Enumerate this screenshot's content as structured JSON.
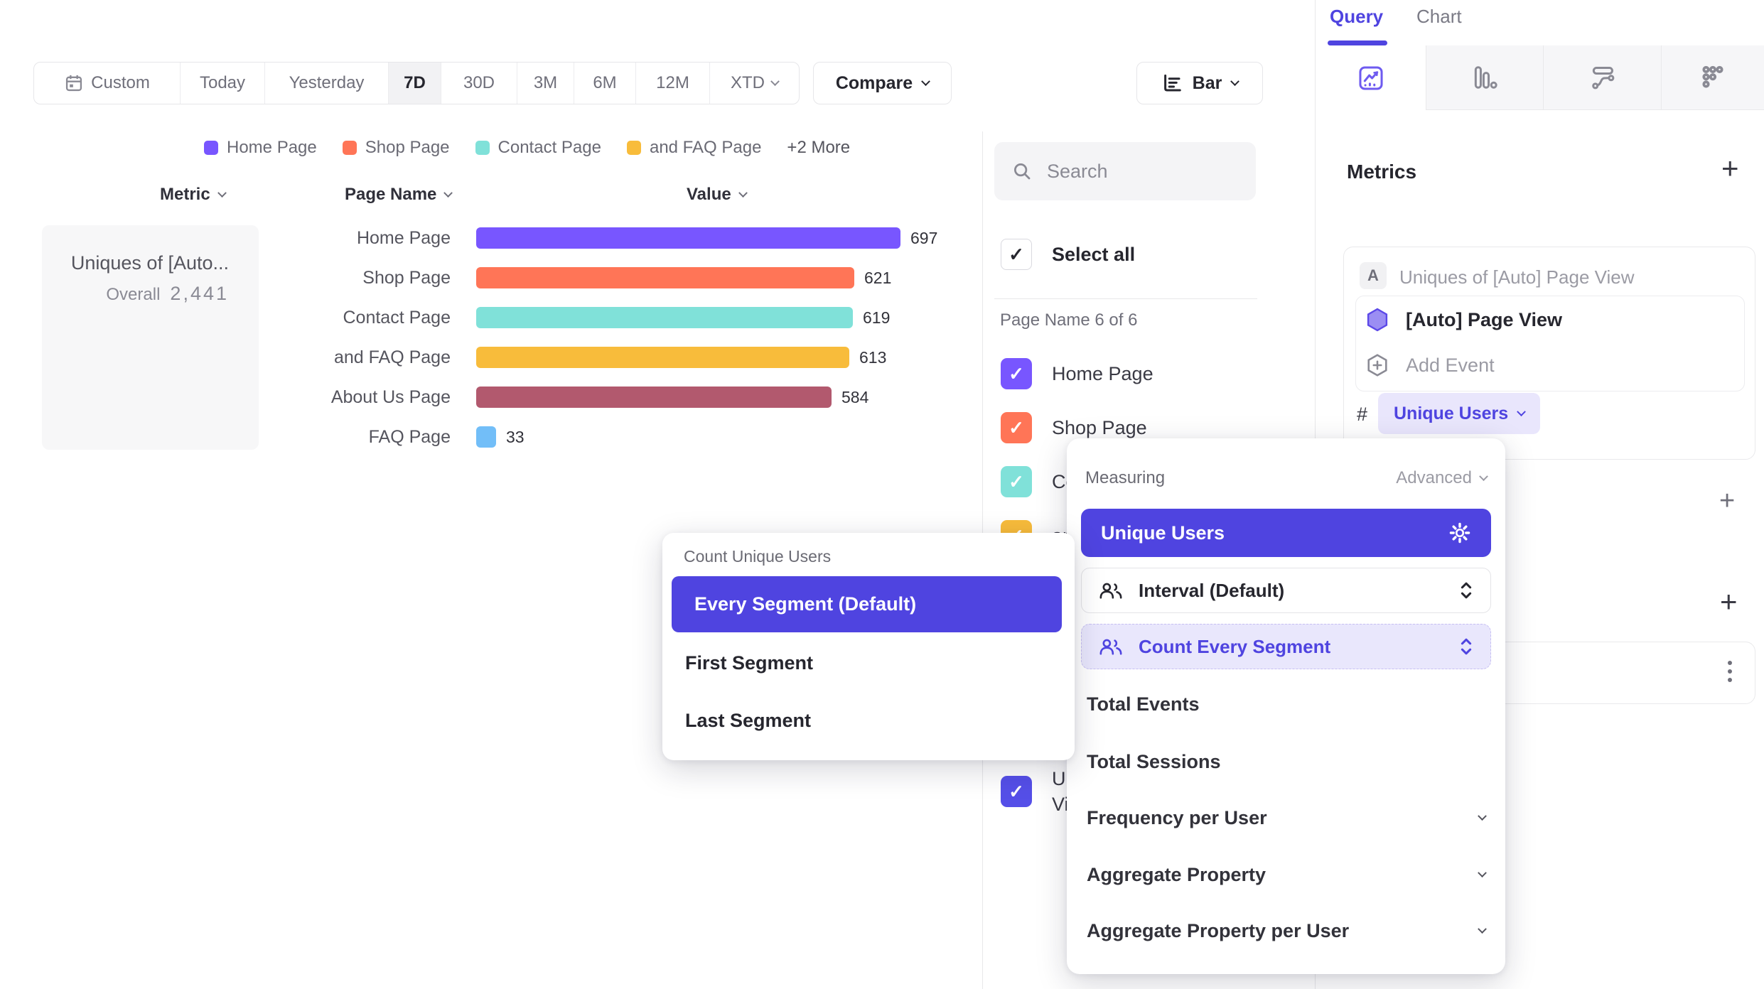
{
  "toolbar": {
    "ranges": [
      "Custom",
      "Today",
      "Yesterday",
      "7D",
      "30D",
      "3M",
      "6M",
      "12M",
      "XTD"
    ],
    "active_range": "7D",
    "compare_label": "Compare",
    "chart_type_label": "Bar"
  },
  "legend": {
    "more_label": "+2 More"
  },
  "table": {
    "col_metric": "Metric",
    "col_page_name": "Page Name",
    "col_value": "Value"
  },
  "summary": {
    "title": "Uniques of [Auto...",
    "overall_label": "Overall",
    "overall_value": "2,441"
  },
  "chart_data": {
    "type": "bar",
    "orientation": "horizontal",
    "title": "Uniques of [Auto] Page View",
    "categories": [
      "Home Page",
      "Shop Page",
      "Contact Page",
      "and FAQ Page",
      "About Us Page",
      "FAQ Page"
    ],
    "values": [
      697,
      621,
      619,
      613,
      584,
      33
    ],
    "colors": [
      "#7856FF",
      "#FF7557",
      "#80E1D9",
      "#F8BC3B",
      "#B2596E",
      "#72BEF8"
    ],
    "xlabel": "Value",
    "ylabel": "Page Name",
    "xlim": [
      0,
      700
    ],
    "overall_total": 2441,
    "legend_entries": [
      "Home Page",
      "Shop Page",
      "Contact Page",
      "and FAQ Page"
    ],
    "legend_position": "top",
    "grid": false
  },
  "filter_panel": {
    "search_placeholder": "Search",
    "select_all_label": "Select all",
    "group_label": "Page Name 6 of 6",
    "items": [
      "Home Page",
      "Shop Page",
      "Contact Page",
      "and FAQ Page",
      "About Us Page",
      "FAQ Page"
    ],
    "extra_item": {
      "label": "Uniques of [Auto] Page View",
      "line1": "Uniques of [Auto] Page",
      "line2": "View",
      "color": "#554FE8"
    }
  },
  "sidebar": {
    "tab_query": "Query",
    "tab_chart": "Chart",
    "metrics_heading": "Metrics",
    "card": {
      "badge": "A",
      "title": "Uniques of [Auto] Page View",
      "event_name": "[Auto] Page View",
      "add_event_label": "Add Event",
      "hash": "#",
      "measurement": "Unique Users"
    }
  },
  "measuring_menu": {
    "title": "Measuring",
    "advanced_label": "Advanced",
    "selected": "Unique Users",
    "interval_label": "Interval (Default)",
    "count_mode_label": "Count Every Segment",
    "item_total_events": "Total Events",
    "item_total_sessions": "Total Sessions",
    "item_frequency": "Frequency per User",
    "item_aggregate": "Aggregate Property",
    "item_aggregate_per_user": "Aggregate Property per User"
  },
  "count_menu": {
    "title": "Count Unique Users",
    "selected": "Every Segment (Default)",
    "option_first": "First Segment",
    "option_last": "Last Segment"
  },
  "colors": {
    "accent": "#4F44E0",
    "brand_purple": "#7856FF"
  }
}
